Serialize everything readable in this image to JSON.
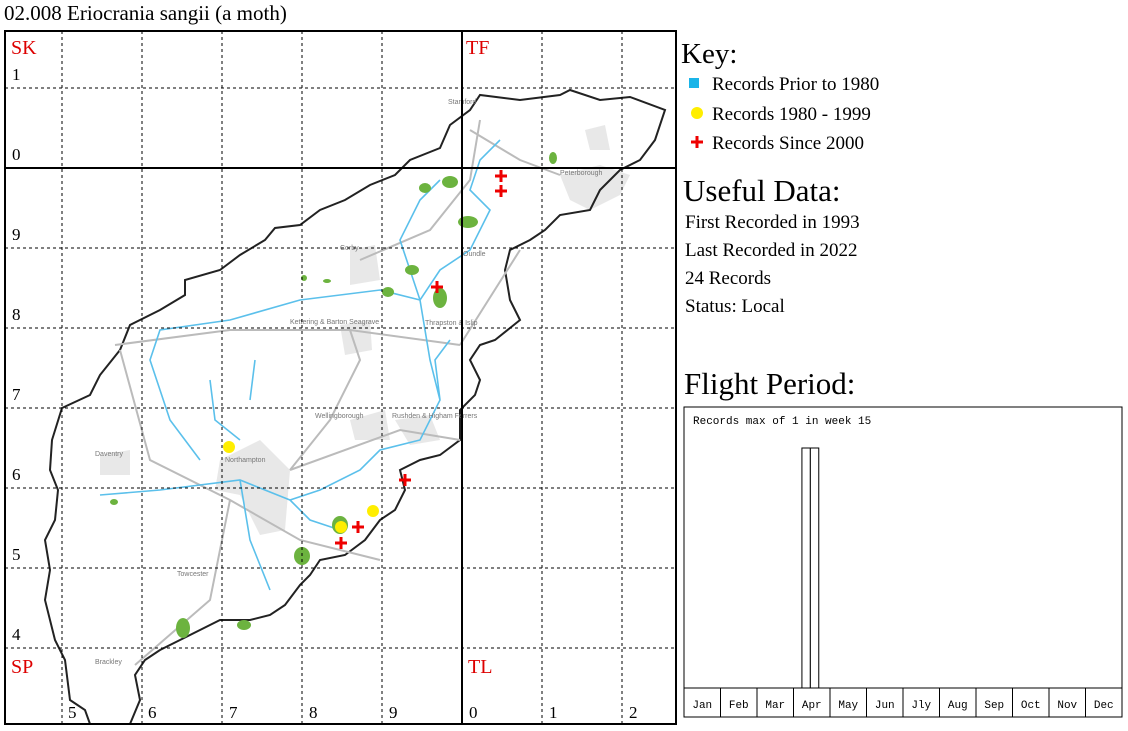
{
  "header": {
    "title": "02.008 Eriocrania sangii (a moth)"
  },
  "map": {
    "square_labels": [
      "SK",
      "TF",
      "SP",
      "TL"
    ],
    "grid_row_labels": [
      "1",
      "0",
      "9",
      "8",
      "7",
      "6",
      "5",
      "4"
    ],
    "grid_col_labels": [
      "5",
      "6",
      "7",
      "8",
      "9",
      "0",
      "1",
      "2"
    ],
    "places": [
      "Stamford",
      "Peterborough",
      "Oundle",
      "Corby",
      "Kettering & Barton Seagrave",
      "Thrapston & Islip",
      "Wellingborough",
      "Rushden & Higham Ferrers",
      "Northampton",
      "Daventry",
      "Towcester",
      "Brackley"
    ]
  },
  "key": {
    "title": "Key:",
    "items": [
      "Records Prior to 1980",
      "Records 1980 - 1999",
      "Records Since 2000"
    ]
  },
  "useful_data": {
    "title": "Useful Data:",
    "lines": [
      "First Recorded in 1993",
      "Last Recorded in 2022",
      "24 Records",
      "Status: Local"
    ]
  },
  "flight_period_title": "Flight Period:",
  "chart_data": {
    "type": "bar",
    "title": "Records max of 1 in week 15",
    "categories": [
      "Jan",
      "Feb",
      "Mar",
      "Apr",
      "May",
      "Jun",
      "Jly",
      "Aug",
      "Sep",
      "Oct",
      "Nov",
      "Dec"
    ],
    "x": [
      15,
      16
    ],
    "values": [
      1,
      1
    ],
    "xlim": [
      0,
      52
    ],
    "ylim": [
      0,
      1
    ],
    "color": "#ffffff"
  }
}
